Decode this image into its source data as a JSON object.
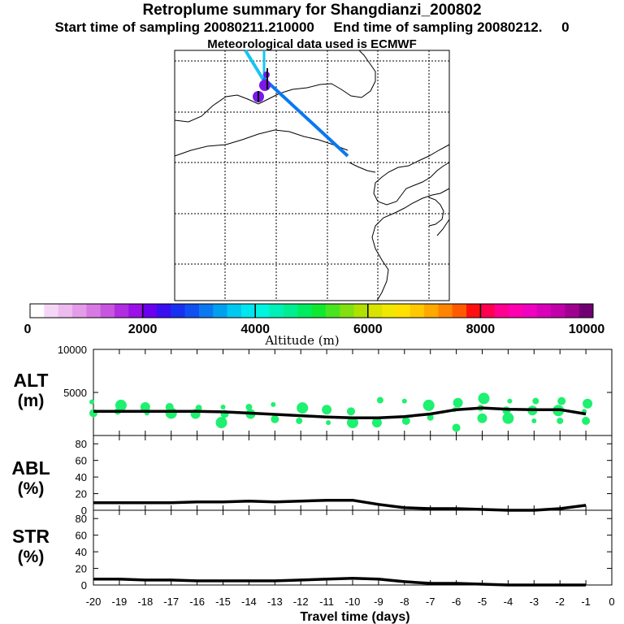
{
  "header": {
    "title": "Retroplume summary for Shangdianzi_200802",
    "sampling_line": "Start time of sampling 20080211.210000     End time of sampling 20080212.     0",
    "met_line": "Meteorological data used is ECMWF"
  },
  "colorbar": {
    "label": "Altitude  (m)",
    "ticks": [
      "0",
      "2000",
      "4000",
      "6000",
      "8000",
      "10000"
    ],
    "colors": [
      "#ffffff",
      "#f6d6f6",
      "#eebbee",
      "#e49ce8",
      "#d87ae4",
      "#c855e0",
      "#b02ee0",
      "#9a10e6",
      "#6a00f0",
      "#3a10f0",
      "#1830f0",
      "#1050f0",
      "#0a78f0",
      "#00a0f0",
      "#00c8f0",
      "#00e6f0",
      "#00f4e0",
      "#00f0b8",
      "#00ee90",
      "#00ec60",
      "#10e830",
      "#48e420",
      "#80e010",
      "#b0e000",
      "#d8e400",
      "#f0e800",
      "#ffe000",
      "#ffc800",
      "#ffa800",
      "#ff8400",
      "#ff5a00",
      "#ff1010",
      "#ff0050",
      "#ff0090",
      "#ff00b0",
      "#f000c0",
      "#d800b8",
      "#c000a8",
      "#a00090",
      "#700070"
    ]
  },
  "map": {
    "trajectory_colors": {
      "upper": "#17c5f0",
      "main": "#0a78f0",
      "markers": "#7a18e8"
    }
  },
  "chart_data": [
    {
      "type": "scatter",
      "name": "ALT panel",
      "ylabel": "ALT",
      "yunit": "(m)",
      "ylim": [
        0,
        10000
      ],
      "yticks": [
        "10000",
        "5000"
      ],
      "x": [
        -20,
        -19,
        -18,
        -17,
        -16,
        -15,
        -14,
        -13,
        -12,
        -11,
        -10,
        -9,
        -8,
        -7,
        -6,
        -5,
        -4,
        -3,
        -2,
        -1
      ],
      "median_line": [
        2800,
        2800,
        2800,
        2800,
        2800,
        2750,
        2600,
        2450,
        2300,
        2150,
        2050,
        2050,
        2200,
        2500,
        3000,
        3200,
        3050,
        3000,
        3000,
        2500
      ],
      "cloud_points": [
        [
          -20,
          3900
        ],
        [
          -20,
          2600
        ],
        [
          -19,
          3500
        ],
        [
          -19,
          2800
        ],
        [
          -18,
          3300
        ],
        [
          -18,
          2600
        ],
        [
          -17,
          3300
        ],
        [
          -17,
          2600
        ],
        [
          -16,
          3200
        ],
        [
          -16,
          2500
        ],
        [
          -15,
          3300
        ],
        [
          -15,
          2500
        ],
        [
          -15,
          1500
        ],
        [
          -14,
          3300
        ],
        [
          -14,
          2500
        ],
        [
          -13,
          3600
        ],
        [
          -13,
          1900
        ],
        [
          -12,
          3200
        ],
        [
          -12,
          1700
        ],
        [
          -11,
          3000
        ],
        [
          -11,
          1500
        ],
        [
          -10,
          2800
        ],
        [
          -10,
          1500
        ],
        [
          -9,
          4100
        ],
        [
          -9,
          1500
        ],
        [
          -8,
          4000
        ],
        [
          -8,
          1700
        ],
        [
          -7,
          3500
        ],
        [
          -7,
          2100
        ],
        [
          -6,
          3800
        ],
        [
          -6,
          3000
        ],
        [
          -6,
          900
        ],
        [
          -5,
          4300
        ],
        [
          -5,
          3200
        ],
        [
          -5,
          2000
        ],
        [
          -4,
          4000
        ],
        [
          -4,
          2900
        ],
        [
          -4,
          2000
        ],
        [
          -3,
          4000
        ],
        [
          -3,
          2900
        ],
        [
          -3,
          1700
        ],
        [
          -2,
          4000
        ],
        [
          -2,
          2900
        ],
        [
          -2,
          1700
        ],
        [
          -1,
          3700
        ],
        [
          -1,
          2800
        ],
        [
          -1,
          1700
        ]
      ]
    },
    {
      "type": "line",
      "name": "ABL panel",
      "ylabel": "ABL",
      "yunit": "(%)",
      "ylim": [
        0,
        90
      ],
      "yticks": [
        "0",
        "20",
        "40",
        "60",
        "80"
      ],
      "x": [
        -20,
        -19,
        -18,
        -17,
        -16,
        -15,
        -14,
        -13,
        -12,
        -11,
        -10,
        -9,
        -8,
        -7,
        -6,
        -5,
        -4,
        -3,
        -2,
        -1
      ],
      "values": [
        9,
        9,
        9,
        9,
        10,
        10,
        11,
        10,
        11,
        12,
        12,
        7,
        3,
        2,
        2,
        1,
        0,
        0,
        2,
        6
      ]
    },
    {
      "type": "line",
      "name": "STR panel",
      "ylabel": "STR",
      "yunit": "(%)",
      "ylim": [
        0,
        90
      ],
      "yticks": [
        "0",
        "20",
        "40",
        "60",
        "80"
      ],
      "x": [
        -20,
        -19,
        -18,
        -17,
        -16,
        -15,
        -14,
        -13,
        -12,
        -11,
        -10,
        -9,
        -8,
        -7,
        -6,
        -5,
        -4,
        -3,
        -2,
        -1
      ],
      "values": [
        7,
        7,
        6,
        6,
        5,
        5,
        5,
        5,
        6,
        7,
        8,
        7,
        4,
        2,
        2,
        1,
        0,
        0,
        0,
        0
      ]
    }
  ],
  "xaxis": {
    "label": "Travel time (days)",
    "ticks": [
      "-20",
      "-19",
      "-18",
      "-17",
      "-16",
      "-15",
      "-14",
      "-13",
      "-12",
      "-11",
      "-10",
      "-9",
      "-8",
      "-7",
      "-6",
      "-5",
      "-4",
      "-3",
      "-2",
      "-1",
      "0"
    ]
  }
}
